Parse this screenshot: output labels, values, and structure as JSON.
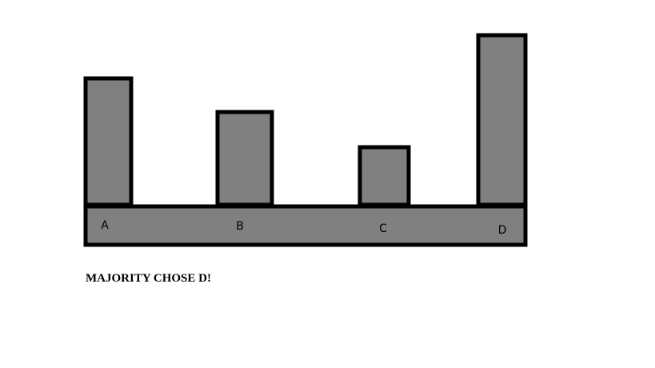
{
  "chart_data": {
    "type": "bar",
    "categories": [
      "A",
      "B",
      "C",
      "D"
    ],
    "values": [
      158,
      116,
      72,
      212
    ],
    "ylim": [
      0,
      212
    ],
    "grid": false,
    "legend": "none",
    "colors": {
      "bar_fill": "#808080",
      "bar_stroke": "#000000"
    }
  },
  "caption": "MAJORITY CHOSE D!"
}
